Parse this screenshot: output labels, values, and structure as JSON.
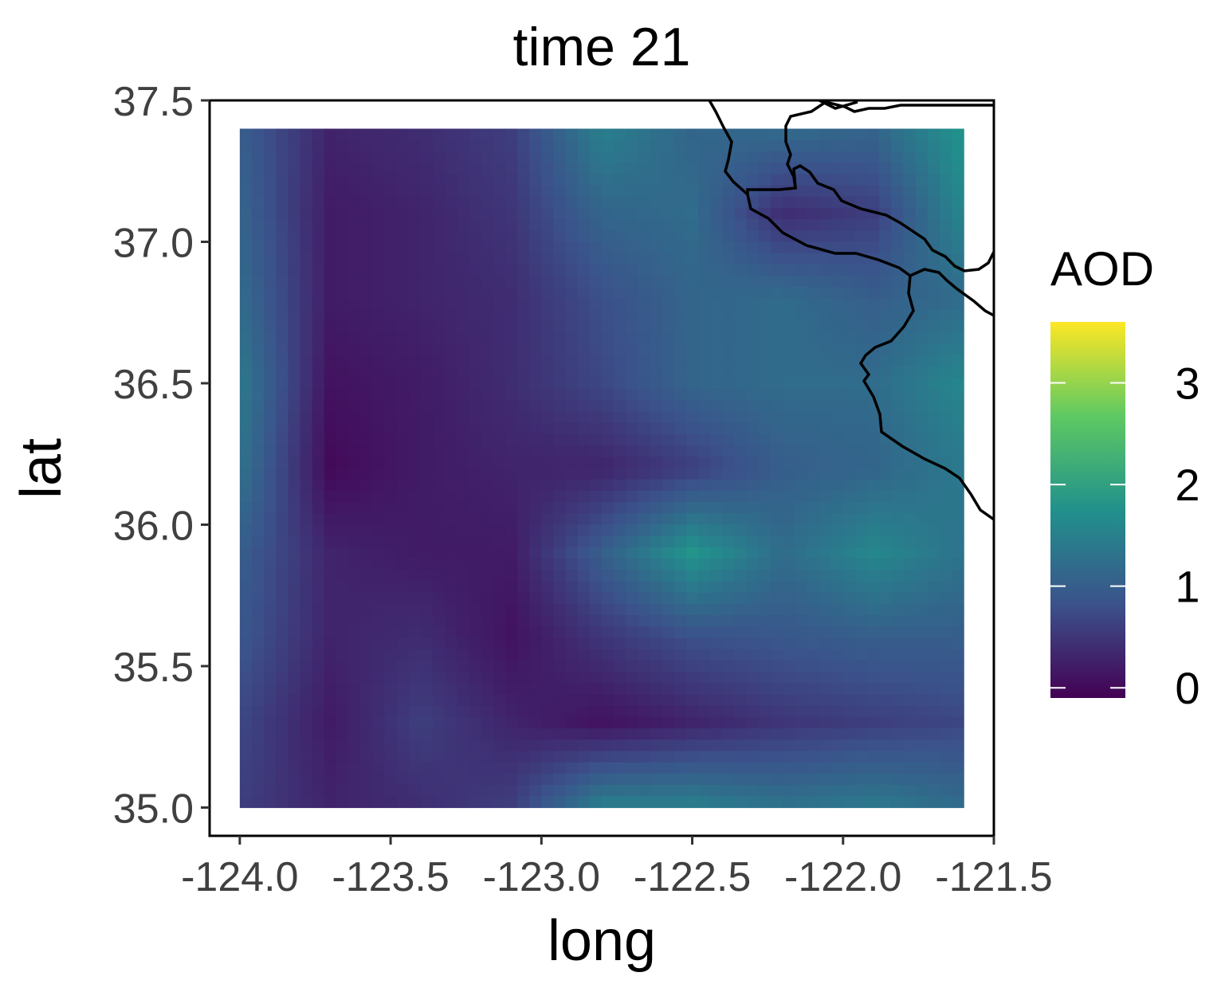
{
  "chart_data": {
    "type": "heatmap",
    "title": "time 21",
    "xlabel": "long",
    "ylabel": "lat",
    "xlim": [
      -124.1,
      -121.5
    ],
    "ylim": [
      34.9,
      37.5
    ],
    "x_ticks": [
      "-124.0",
      "-123.5",
      "-123.0",
      "-122.5",
      "-122.0",
      "-121.5"
    ],
    "x_tick_values": [
      -124.0,
      -123.5,
      -123.0,
      -122.5,
      -122.0,
      -121.5
    ],
    "y_ticks": [
      "35.0",
      "35.5",
      "36.0",
      "36.5",
      "37.0",
      "37.5"
    ],
    "y_tick_values": [
      35.0,
      35.5,
      36.0,
      36.5,
      37.0,
      37.5
    ],
    "grid_extent": {
      "long": [
        -124.0,
        -121.6
      ],
      "lat": [
        35.0,
        37.4
      ]
    },
    "grid": {
      "long": [
        -124.0,
        -123.7,
        -123.4,
        -123.1,
        -122.8,
        -122.5,
        -122.2,
        -121.9,
        -121.6
      ],
      "lat": [
        37.4,
        37.1,
        36.8,
        36.5,
        36.2,
        35.9,
        35.6,
        35.3,
        35.0
      ],
      "aod": [
        [
          1.0,
          0.3,
          0.4,
          0.6,
          1.5,
          1.1,
          1.2,
          1.1,
          1.8
        ],
        [
          1.1,
          0.2,
          0.3,
          0.5,
          1.1,
          1.2,
          0.4,
          0.6,
          1.6
        ],
        [
          1.2,
          0.2,
          0.3,
          0.4,
          0.8,
          1.1,
          1.2,
          1.0,
          1.2
        ],
        [
          1.4,
          0.1,
          0.2,
          0.4,
          0.7,
          1.1,
          1.2,
          1.2,
          1.6
        ],
        [
          1.3,
          0.0,
          0.2,
          0.3,
          0.3,
          0.6,
          1.0,
          1.1,
          1.4
        ],
        [
          1.0,
          0.3,
          0.2,
          0.2,
          1.0,
          1.8,
          1.2,
          1.6,
          1.3
        ],
        [
          0.9,
          0.3,
          0.4,
          0.1,
          0.5,
          0.8,
          0.9,
          1.0,
          1.0
        ],
        [
          0.7,
          0.2,
          0.6,
          0.3,
          0.1,
          0.3,
          0.5,
          0.6,
          0.7
        ],
        [
          0.6,
          0.3,
          0.4,
          0.6,
          1.5,
          1.5,
          1.3,
          1.4,
          1.2
        ]
      ]
    },
    "legend": {
      "title": "AOD",
      "ticks": [
        "0",
        "1",
        "2",
        "3"
      ],
      "tick_values": [
        0,
        1,
        2,
        3
      ],
      "range": [
        -0.1,
        3.6
      ],
      "placement": "right",
      "colors": [
        "#440154",
        "#3b528b",
        "#21918c",
        "#5ec962",
        "#fde725"
      ]
    },
    "coastline_color": "#000000"
  }
}
